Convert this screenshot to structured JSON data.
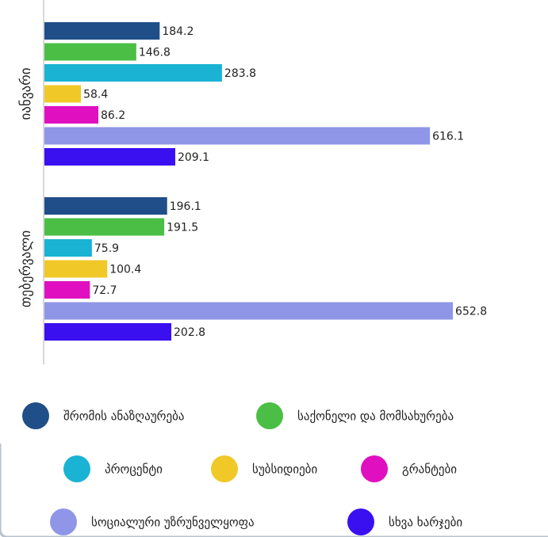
{
  "chart_data": {
    "type": "bar",
    "orientation": "horizontal",
    "categories": [
      "იანვარი",
      "თებერვალი"
    ],
    "series": [
      {
        "name": "შრომის ანაზღაურება",
        "color": "#1f4e89",
        "values": [
          184.2,
          196.1
        ]
      },
      {
        "name": "საქონელი და მომსახურება",
        "color": "#4bbf45",
        "values": [
          146.8,
          191.5
        ]
      },
      {
        "name": "პროცენტი",
        "color": "#1ab3d4",
        "values": [
          283.8,
          75.9
        ]
      },
      {
        "name": "სუბსიდიები",
        "color": "#f0c928",
        "values": [
          58.4,
          100.4
        ]
      },
      {
        "name": "გრანტები",
        "color": "#e010c0",
        "values": [
          86.2,
          72.7
        ]
      },
      {
        "name": "სოციალური უზრუნველყოფა",
        "color": "#8f96e8",
        "values": [
          616.1,
          652.8
        ]
      },
      {
        "name": "სხვა ხარჯები",
        "color": "#3a10f0",
        "values": [
          209.1,
          202.8
        ]
      }
    ]
  }
}
